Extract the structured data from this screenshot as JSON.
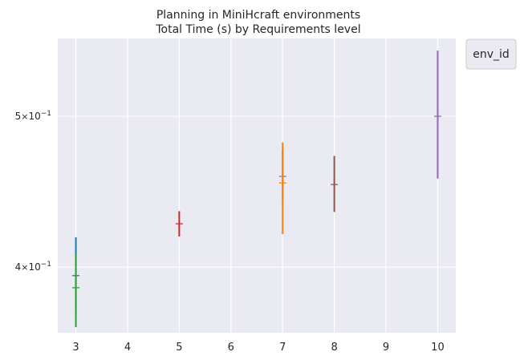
{
  "chart_data": {
    "type": "scatter",
    "title_line1": "Planning in MiniHcraft environments",
    "title_line2": "Total Time (s) by Requirements level",
    "xlabel": "",
    "ylabel": "",
    "yscale": "log",
    "xlim": [
      2.65,
      10.35
    ],
    "ylim": [
      0.363,
      0.561
    ],
    "x_ticks": [
      {
        "value": 3,
        "label": "3"
      },
      {
        "value": 4,
        "label": "4"
      },
      {
        "value": 5,
        "label": "5"
      },
      {
        "value": 6,
        "label": "6"
      },
      {
        "value": 7,
        "label": "7"
      },
      {
        "value": 8,
        "label": "8"
      },
      {
        "value": 9,
        "label": "9"
      },
      {
        "value": 10,
        "label": "10"
      }
    ],
    "y_ticks": [
      {
        "value": 0.4,
        "base": "4",
        "times": "×",
        "ten": "10",
        "exp": "−1"
      },
      {
        "value": 0.5,
        "base": "5",
        "times": "×",
        "ten": "10",
        "exp": "−1"
      }
    ],
    "grid": true,
    "background": "#EAEAF2",
    "legend": {
      "title": "env_id",
      "placement": "outside-top-right",
      "entries": []
    },
    "series": [
      {
        "x": 3,
        "y": 0.395,
        "low": 0.374,
        "high": 0.418,
        "color": "#1f77b4"
      },
      {
        "x": 3,
        "y": 0.388,
        "low": 0.366,
        "high": 0.408,
        "color": "#2ca02c"
      },
      {
        "x": 5,
        "y": 0.4265,
        "low": 0.4185,
        "high": 0.4345,
        "color": "#d62728"
      },
      {
        "x": 7,
        "y": 0.4575,
        "low": 0.4415,
        "high": 0.4755,
        "color": "#7f7f7f"
      },
      {
        "x": 7,
        "y": 0.453,
        "low": 0.42,
        "high": 0.481,
        "color": "#ff7f0e"
      },
      {
        "x": 8,
        "y": 0.452,
        "low": 0.434,
        "high": 0.4715,
        "color": "#8c564b"
      },
      {
        "x": 10,
        "y": 0.5,
        "low": 0.456,
        "high": 0.551,
        "color": "#9467bd"
      }
    ]
  }
}
